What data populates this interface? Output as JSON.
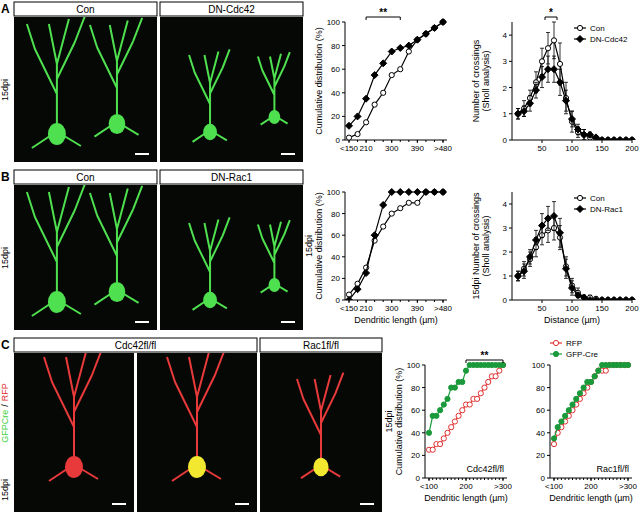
{
  "images": {
    "rows": [
      {
        "letter": "A",
        "side_label": "15dpi",
        "headers": [
          {
            "label": "Con",
            "count": 1
          },
          {
            "label": "DN-Cdc42",
            "count": 1
          }
        ]
      },
      {
        "letter": "B",
        "side_label": "15dpi",
        "headers": [
          {
            "label": "Con",
            "count": 1
          },
          {
            "label": "DN-Rac1",
            "count": 1
          }
        ]
      },
      {
        "letter": "C",
        "side_label": "15dpi",
        "channels": [
          {
            "text": "GFPCre",
            "color": "#3ccf3c"
          },
          {
            "text": "RFP",
            "color": "#e03030"
          }
        ],
        "separator": "/",
        "headers": [
          {
            "label": "Cdc42fl/fl",
            "count": 2
          },
          {
            "label": "Rac1fl/fl",
            "count": 1
          }
        ]
      }
    ]
  },
  "chart_data": [
    {
      "type": "line",
      "ylabel": [
        "Cumulative distribution (%)"
      ],
      "categories": [
        "<150",
        null,
        "210",
        null,
        null,
        "300",
        null,
        null,
        "390",
        null,
        null,
        ">480"
      ],
      "series": [
        {
          "name": "Con",
          "color": "#000000",
          "marker": "circle-open",
          "values": [
            2,
            5,
            15,
            30,
            40,
            55,
            60,
            75,
            85,
            90,
            95,
            100
          ]
        },
        {
          "name": "DN-Cdc42",
          "color": "#000000",
          "marker": "diamond",
          "values": [
            12,
            20,
            35,
            55,
            65,
            75,
            78,
            80,
            85,
            90,
            95,
            100
          ]
        }
      ],
      "ylim": [
        0,
        100
      ],
      "yticks": [
        0,
        20,
        40,
        60,
        80,
        100
      ],
      "annotations": [
        {
          "text": "**",
          "x": [
            2,
            6
          ]
        }
      ]
    },
    {
      "type": "line",
      "ylabel": [
        "Number of crossings",
        "(Sholl analysis)"
      ],
      "x": [
        10,
        20,
        30,
        40,
        50,
        60,
        70,
        80,
        90,
        100,
        110,
        120,
        130,
        140,
        150,
        160,
        170,
        180,
        190,
        200
      ],
      "series": [
        {
          "name": "Con",
          "color": "#000000",
          "marker": "circle-open",
          "values": [
            1,
            1.2,
            1.6,
            2.2,
            3.0,
            3.5,
            3.8,
            2.9,
            1.6,
            0.7,
            0.3,
            0.2,
            0.1,
            0.05,
            0,
            0,
            0,
            0,
            0,
            0
          ],
          "errors": [
            0.2,
            0.3,
            0.3,
            0.4,
            0.5,
            0.6,
            0.7,
            0.8,
            0.6,
            0.4,
            0.2,
            0.2,
            0.1,
            0.05,
            0,
            0,
            0,
            0,
            0,
            0
          ]
        },
        {
          "name": "DN-Cdc42",
          "color": "#000000",
          "marker": "diamond",
          "values": [
            1,
            1.1,
            1.4,
            1.9,
            2.4,
            2.7,
            2.7,
            2.2,
            1.5,
            0.8,
            0.4,
            0.2,
            0.2,
            0.1,
            0,
            0,
            0,
            0,
            0,
            0
          ],
          "errors": [
            0.2,
            0.2,
            0.3,
            0.3,
            0.4,
            0.5,
            0.5,
            0.5,
            0.4,
            0.3,
            0.2,
            0.2,
            0.1,
            0.05,
            0,
            0,
            0,
            0,
            0,
            0
          ]
        }
      ],
      "xlim": [
        0,
        200
      ],
      "xticks": [
        50,
        100,
        150,
        200
      ],
      "ylim": [
        0,
        4.5
      ],
      "yticks": [
        0,
        1,
        2,
        3,
        4
      ],
      "legend": "top-right",
      "annotations": [
        {
          "text": "*",
          "x": [
            55,
            75
          ]
        }
      ]
    },
    {
      "type": "line",
      "xlabel": "Dendritic length (µm)",
      "ylabel": [
        "15dpi",
        "Cumulative distribution (%)"
      ],
      "categories": [
        "<150",
        null,
        "210",
        null,
        null,
        "300",
        null,
        null,
        "390",
        null,
        null,
        ">480"
      ],
      "series": [
        {
          "name": "Con",
          "color": "#000000",
          "marker": "circle-open",
          "values": [
            5,
            15,
            30,
            55,
            68,
            80,
            85,
            90,
            90,
            100,
            100,
            100
          ]
        },
        {
          "name": "DN-Rac1",
          "color": "#000000",
          "marker": "diamond",
          "values": [
            0,
            10,
            25,
            60,
            88,
            100,
            100,
            100,
            100,
            100,
            100,
            100
          ]
        }
      ],
      "ylim": [
        0,
        100
      ],
      "yticks": [
        0,
        20,
        40,
        60,
        80,
        100
      ]
    },
    {
      "type": "line",
      "xlabel": "Distance (µm)",
      "ylabel": [
        "15dpi Number of crossings",
        "(Sholl analysis)"
      ],
      "x": [
        10,
        20,
        30,
        40,
        50,
        60,
        70,
        80,
        90,
        100,
        110,
        120,
        130,
        140,
        150,
        160,
        170,
        180,
        190,
        200
      ],
      "series": [
        {
          "name": "Con",
          "color": "#000000",
          "marker": "circle-open",
          "values": [
            1,
            1.3,
            1.7,
            2.2,
            2.7,
            2.9,
            3.0,
            2.6,
            1.4,
            0.6,
            0.3,
            0.1,
            0.1,
            0.05,
            0,
            0,
            0,
            0,
            0,
            0
          ],
          "errors": [
            0.2,
            0.3,
            0.3,
            0.4,
            0.4,
            0.5,
            0.5,
            0.5,
            0.4,
            0.3,
            0.2,
            0.1,
            0.1,
            0.05,
            0,
            0,
            0,
            0,
            0,
            0
          ]
        },
        {
          "name": "DN-Rac1",
          "color": "#000000",
          "marker": "diamond",
          "values": [
            1,
            1.2,
            1.8,
            2.5,
            3.1,
            3.4,
            3.5,
            2.8,
            1.3,
            0.5,
            0.2,
            0.1,
            0,
            0,
            0,
            0,
            0,
            0,
            0,
            0
          ],
          "errors": [
            0.2,
            0.3,
            0.3,
            0.4,
            0.5,
            0.5,
            0.6,
            0.6,
            0.4,
            0.3,
            0.1,
            0.1,
            0,
            0,
            0,
            0,
            0,
            0,
            0,
            0
          ]
        }
      ],
      "xlim": [
        0,
        200
      ],
      "xticks": [
        50,
        100,
        150,
        200
      ],
      "ylim": [
        0,
        4.5
      ],
      "yticks": [
        0,
        1,
        2,
        3,
        4
      ],
      "legend": "top-right"
    },
    {
      "type": "line",
      "title": "Cdc42fl/fl",
      "xlabel": "Dendritic length (µm)",
      "ylabel": [
        "15dpi",
        "Cumulative distribution (%)"
      ],
      "categories": [
        "<100",
        null,
        null,
        null,
        null,
        null,
        null,
        null,
        null,
        null,
        "200",
        null,
        null,
        null,
        null,
        null,
        null,
        null,
        null,
        null,
        ">300"
      ],
      "series": [
        {
          "name": "RFP",
          "color": "#e03030",
          "marker": "circle-open",
          "values": [
            25,
            25,
            30,
            30,
            35,
            40,
            45,
            50,
            55,
            60,
            65,
            65,
            70,
            70,
            75,
            80,
            85,
            90,
            90,
            95,
            100
          ]
        },
        {
          "name": "GFP-Cre",
          "color": "#1a9a3a",
          "marker": "circle",
          "values": [
            40,
            55,
            55,
            60,
            65,
            70,
            80,
            80,
            85,
            85,
            95,
            100,
            100,
            100,
            100,
            100,
            100,
            100,
            100,
            100,
            100
          ]
        }
      ],
      "ylim": [
        0,
        100
      ],
      "yticks": [
        0,
        20,
        40,
        60,
        80,
        100
      ],
      "annotations": [
        {
          "text": "**",
          "x": [
            10,
            20
          ]
        }
      ]
    },
    {
      "type": "line",
      "title": "Rac1fl/fl",
      "xlabel": "Dendritic length (µm)",
      "categories": [
        "<100",
        null,
        null,
        null,
        null,
        null,
        null,
        null,
        null,
        null,
        "200",
        null,
        null,
        null,
        null,
        null,
        null,
        null,
        null,
        null,
        ">300"
      ],
      "series": [
        {
          "name": "RFP",
          "color": "#e03030",
          "marker": "circle-open",
          "values": [
            30,
            40,
            45,
            50,
            55,
            60,
            65,
            70,
            75,
            80,
            85,
            90,
            95,
            95,
            95,
            100,
            100,
            100,
            100,
            100,
            100
          ]
        },
        {
          "name": "GFP-Cre",
          "color": "#1a9a3a",
          "marker": "circle",
          "values": [
            35,
            45,
            50,
            55,
            60,
            65,
            70,
            75,
            80,
            85,
            85,
            90,
            95,
            100,
            100,
            100,
            100,
            100,
            100,
            100,
            100
          ]
        }
      ],
      "ylim": [
        0,
        100
      ],
      "yticks": [
        0,
        20,
        40,
        60,
        80,
        100
      ],
      "legend": "top"
    }
  ]
}
